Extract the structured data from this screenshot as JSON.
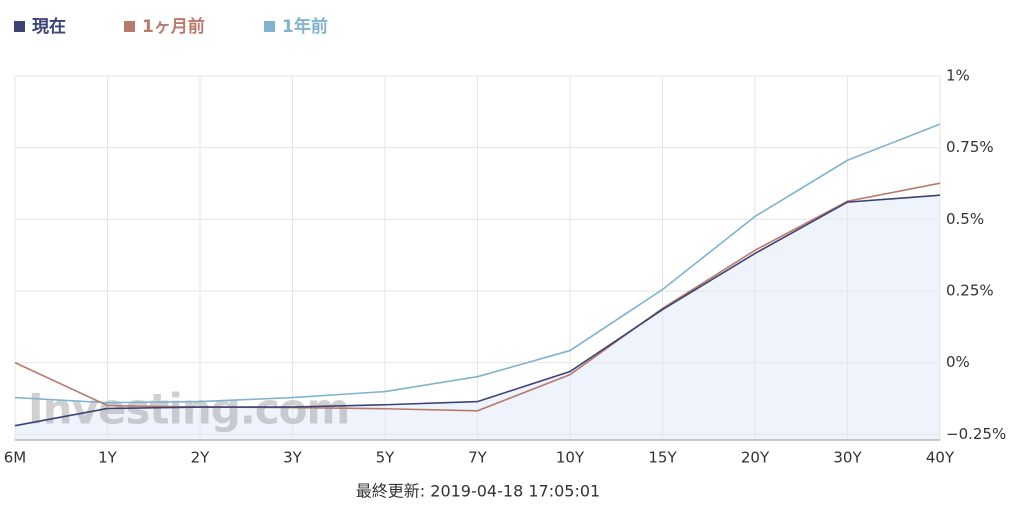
{
  "chart_data": {
    "type": "line",
    "categories": [
      "6M",
      "1Y",
      "2Y",
      "3Y",
      "5Y",
      "7Y",
      "10Y",
      "15Y",
      "20Y",
      "30Y",
      "40Y"
    ],
    "series": [
      {
        "name": "現在",
        "color": "#3c4275",
        "fill": "#eef3fc",
        "values": [
          -0.22,
          -0.16,
          -0.155,
          -0.155,
          -0.147,
          -0.136,
          -0.031,
          0.185,
          0.381,
          0.56,
          0.584
        ]
      },
      {
        "name": "1ヶ月前",
        "color": "#b87a6a",
        "values": [
          0,
          -0.15,
          -0.155,
          -0.157,
          -0.161,
          -0.168,
          -0.042,
          0.189,
          0.392,
          0.563,
          0.626
        ]
      },
      {
        "name": "1年前",
        "color": "#7fb3d0",
        "values": [
          -0.122,
          -0.14,
          -0.136,
          -0.122,
          -0.101,
          -0.049,
          0.042,
          0.255,
          0.51,
          0.706,
          0.832
        ]
      }
    ],
    "ylim": [
      -0.27,
      1
    ],
    "yticks": [
      {
        "value": 1,
        "label": "1%"
      },
      {
        "value": 0.75,
        "label": "0.75%"
      },
      {
        "value": 0.5,
        "label": "0.5%"
      },
      {
        "value": 0.25,
        "label": "0.25%"
      },
      {
        "value": 0,
        "label": "0%"
      },
      {
        "value": -0.25,
        "label": "−0.25%"
      }
    ],
    "grid": true,
    "watermark": "Investing.com",
    "footnote": "最終更新: 2019-04-18 17:05:01"
  }
}
